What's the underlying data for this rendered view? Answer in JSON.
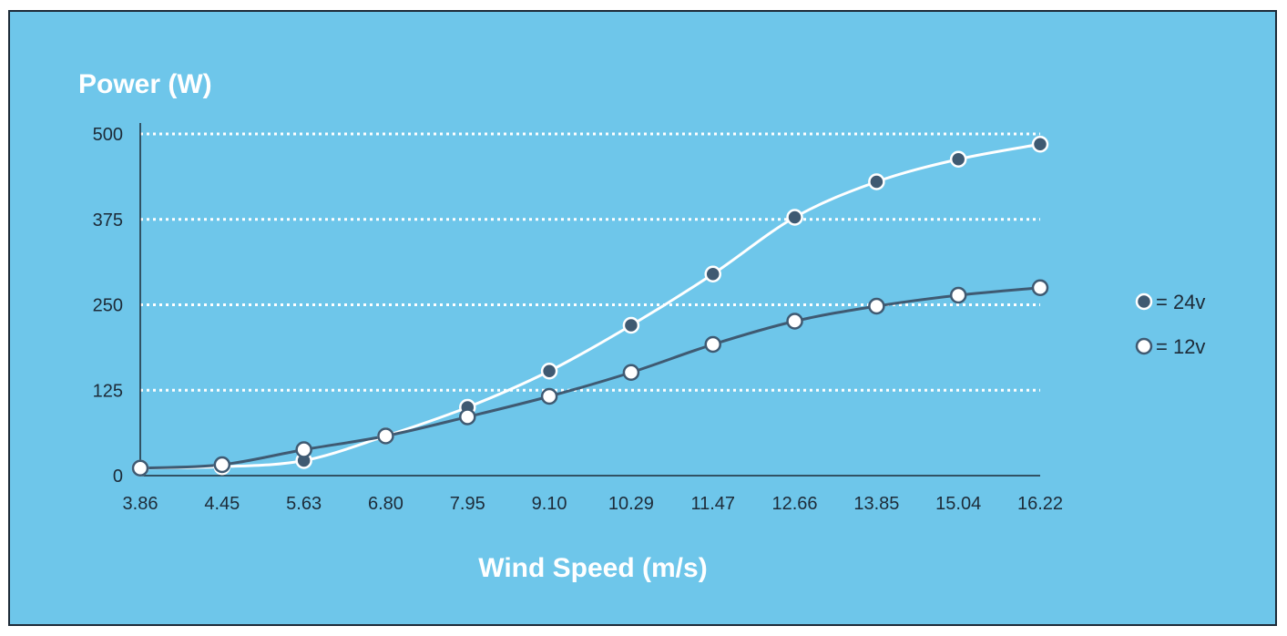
{
  "colors": {
    "background": "#6ec6ea",
    "frame": "#1d2b38",
    "grid": "#ffffff",
    "series_24v": "#ffffff",
    "series_12v": "#3f5a72",
    "text": "#1d2b38"
  },
  "chart_data": {
    "type": "line",
    "title": "Power (W)",
    "xlabel": "Wind Speed (m/s)",
    "ylabel": "Power (W)",
    "categories": [
      "3.86",
      "4.45",
      "5.63",
      "6.80",
      "7.95",
      "9.10",
      "10.29",
      "11.47",
      "12.66",
      "13.85",
      "15.04",
      "16.22"
    ],
    "y_ticks": [
      "0",
      "125",
      "250",
      "375",
      "500"
    ],
    "ylim": [
      0,
      500
    ],
    "grid": "horizontal dotted",
    "legend_position": "right",
    "series": [
      {
        "name": "= 24v",
        "values": [
          11,
          13,
          22,
          58,
          100,
          153,
          220,
          295,
          378,
          430,
          463,
          485
        ],
        "line_color": "#ffffff",
        "marker_fill": "#3f5a72",
        "marker_stroke": "#ffffff"
      },
      {
        "name": "= 12v",
        "values": [
          11,
          16,
          38,
          58,
          86,
          116,
          151,
          192,
          226,
          248,
          264,
          275
        ],
        "line_color": "#3f5a72",
        "marker_fill": "#ffffff",
        "marker_stroke": "#3f5a72"
      }
    ]
  }
}
